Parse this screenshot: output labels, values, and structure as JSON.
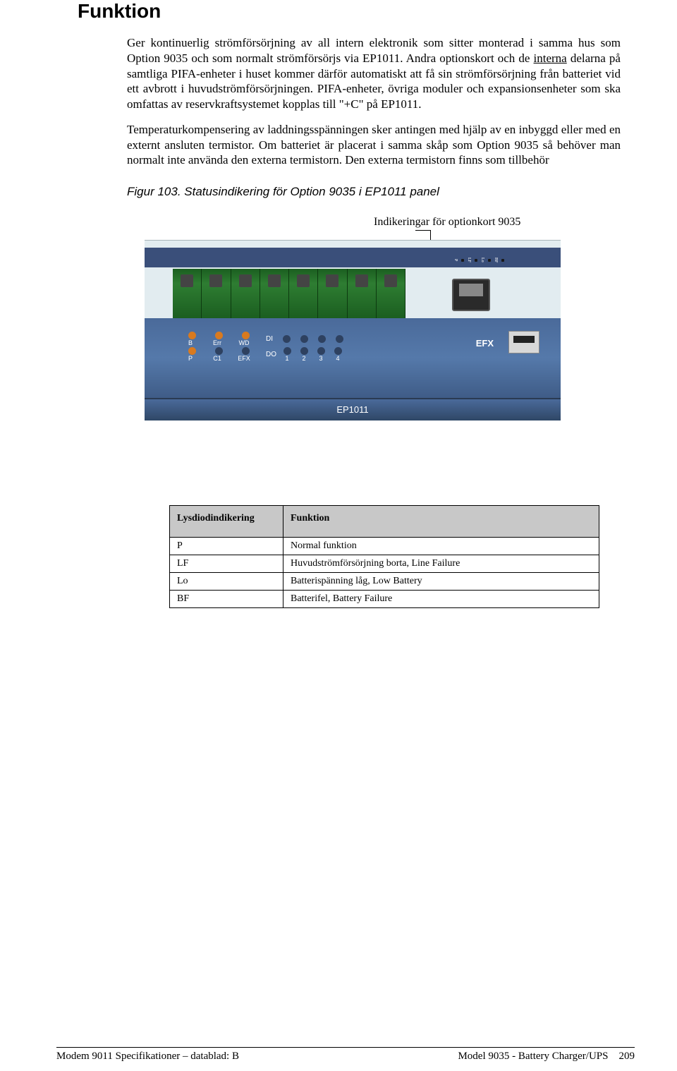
{
  "section_title": "Funktion",
  "para1_a": "Ger kontinuerlig strömförsörjning av all intern elektronik som sitter monterad i samma hus som Option 9035 och som normalt strömförsörjs via EP1011. Andra optionskort och de ",
  "para1_underlined": "interna",
  "para1_b": " delarna på samtliga PIFA-enheter i huset kommer därför automatiskt att få sin strömförsörjning från batteriet vid ett avbrott i huvudströmförsörjningen. PIFA-enheter, övriga moduler och expansionsenheter som ska omfattas av reservkraftsystemet kopplas till \"+C\" på EP1011.",
  "para2": "Temperaturkompensering av laddningsspänningen sker antingen med hjälp av en inbyggd eller med en externt ansluten termistor. Om batteriet är placerat i samma skåp som Option 9035 så behöver man normalt inte använda den externa termistorn. Den externa termistorn finns som tillbehör",
  "figure_caption": "Figur 103. Statusindikering för Option 9035 i EP1011 panel",
  "indikeringar_label": "Indikeringar för optionkort 9035",
  "device": {
    "tiny_labels": [
      "P",
      "LF",
      "Lo",
      "BF"
    ],
    "row1_labels": [
      "B",
      "Err",
      "WD"
    ],
    "row1_right": "DI",
    "row2_labels": [
      "P",
      "C1",
      "EFX"
    ],
    "row2_right": "DO",
    "nums": [
      "1",
      "2",
      "3",
      "4"
    ],
    "led_on_color": "#d97a1f",
    "led_dim_color": "#2e4160",
    "efx_text": "EFX",
    "model": "EP1011",
    "terminal_segments": 8
  },
  "table": {
    "headers": [
      "Lysdiodindikering",
      "Funktion"
    ],
    "rows": [
      [
        "P",
        "Normal funktion"
      ],
      [
        "LF",
        "Huvudströmförsörjning borta, Line Failure"
      ],
      [
        "Lo",
        "Batterispänning låg, Low Battery"
      ],
      [
        "BF",
        "Batterifel, Battery Failure"
      ]
    ]
  },
  "footer": {
    "left": "Modem 9011 Specifikationer – datablad: B",
    "right_title": "Model 9035 - Battery Charger/UPS",
    "page": "209"
  }
}
